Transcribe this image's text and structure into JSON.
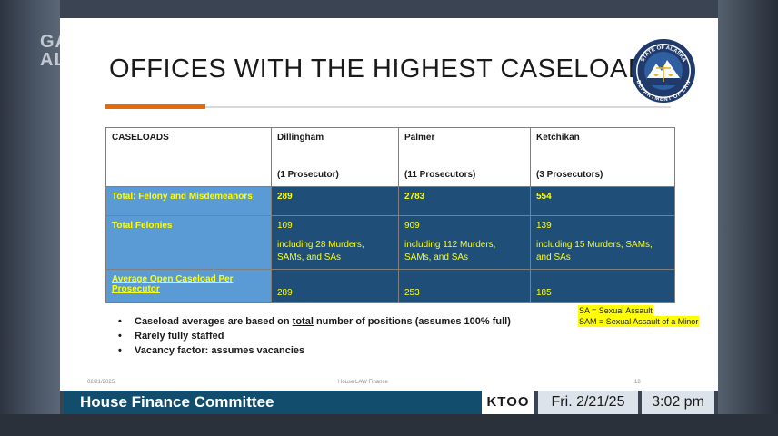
{
  "broadcast": {
    "logo_line1": "GAVEL",
    "logo_line2": "ALASKA",
    "committee": "House Finance Committee",
    "station": "KTOO",
    "date": "Fri. 2/21/25",
    "time": "3:02 pm"
  },
  "slide": {
    "title": "OFFICES WITH THE HIGHEST CASELOADS",
    "seal_text_top": "STATE OF ALASKA",
    "seal_text_bottom": "DEPARTMENT OF LAW",
    "accent_color": "#e36c0a",
    "table": {
      "header": {
        "label": "CASELOADS",
        "columns": [
          {
            "office": "Dillingham",
            "prosecutors": "(1 Prosecutor)"
          },
          {
            "office": "Palmer",
            "prosecutors": "(11 Prosecutors)"
          },
          {
            "office": "Ketchikan",
            "prosecutors": "(3 Prosecutors)"
          }
        ]
      },
      "rows": [
        {
          "label": "Total: Felony and Misdemeanors",
          "values": [
            "289",
            "2783",
            "554"
          ]
        },
        {
          "label": "Total Felonies",
          "values": [
            "109",
            "909",
            "139"
          ],
          "notes": [
            "including 28 Murders, SAMs, and SAs",
            "including 112 Murders, SAMs, and SAs",
            "including 15 Murders, SAMs, and SAs"
          ]
        },
        {
          "label_part1": "Average Open Caseload ",
          "label_part2": "Per",
          "label_part3": " Prosecutor",
          "values": [
            "289",
            "253",
            "185"
          ]
        }
      ],
      "colors": {
        "label_bg": "#5b9bd5",
        "cell_bg": "#1f4e79",
        "text": "#ffff00"
      }
    },
    "bullets": [
      {
        "part1": "Caseload averages are based on ",
        "part2": "total",
        "part3": " number of positions (assumes 100% full)"
      },
      {
        "text": "Rarely fully staffed"
      },
      {
        "text": "Vacancy factor: assumes vacancies"
      }
    ],
    "legend": [
      "SA = Sexual Assault",
      "SAM = Sexual Assault of a Minor"
    ],
    "footer": {
      "date": "02/21/2025",
      "center": "House LAW Finance",
      "page": "18"
    }
  }
}
